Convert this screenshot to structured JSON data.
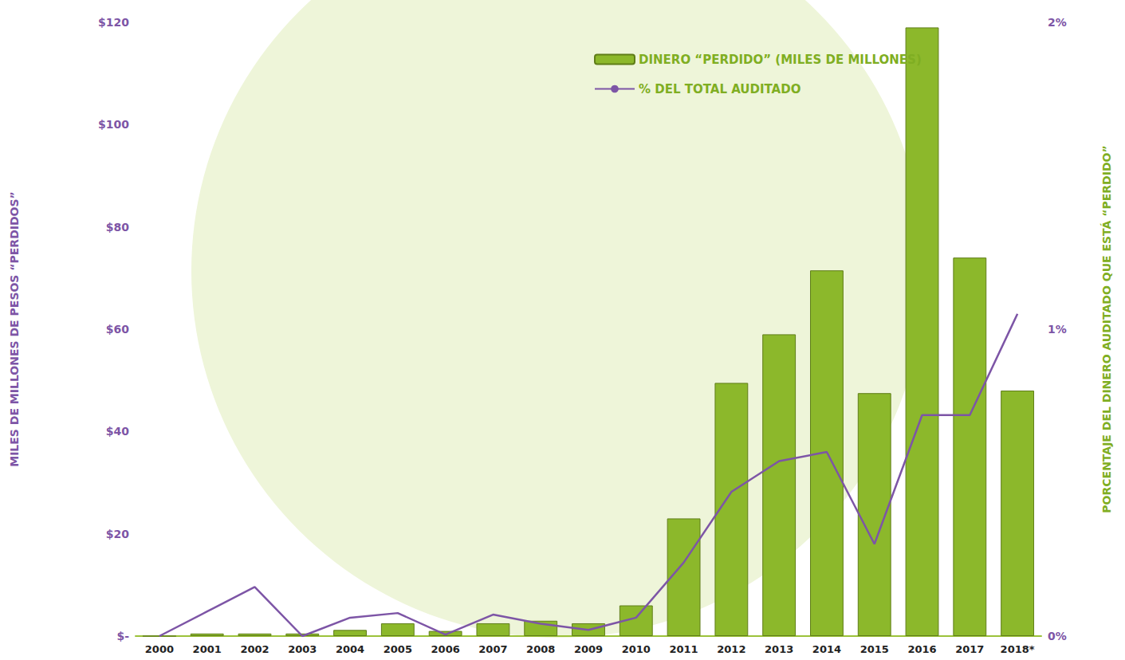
{
  "chart_data": {
    "type": "bar",
    "categories": [
      "2000",
      "2001",
      "2002",
      "2003",
      "2004",
      "2005",
      "2006",
      "2007",
      "2008",
      "2009",
      "2010",
      "2011",
      "2012",
      "2013",
      "2014",
      "2015",
      "2016",
      "2017",
      "2018*"
    ],
    "series": [
      {
        "name": "DINERO “PERDIDO” (MILES DE MILLONES)",
        "type": "bar",
        "color": "#8cb82b",
        "values": [
          0,
          0.5,
          0.5,
          0.5,
          1.2,
          2.5,
          1.0,
          2.5,
          3.0,
          2.5,
          6.0,
          23.0,
          49.5,
          59.0,
          71.5,
          47.5,
          119.0,
          74.0,
          48.0
        ]
      },
      {
        "name": "% DEL TOTAL AUDITADO",
        "type": "line",
        "color": "#7d55a6",
        "axis": "y2",
        "values": [
          0,
          0.08,
          0.16,
          0,
          0.06,
          0.075,
          0.005,
          0.07,
          0.04,
          0.02,
          0.06,
          0.24,
          0.47,
          0.57,
          0.6,
          0.3,
          0.72,
          0.72,
          1.05
        ]
      }
    ],
    "y_label": "MILES DE MILLONES DE PESOS “PERDIDOS”",
    "y2_label": "PORCENTAJE DEL DINERO AUDITADO QUE ESTÁ “PERDIDO”",
    "ylim": [
      0,
      120
    ],
    "yticks": [
      {
        "value": 0,
        "label": "$-"
      },
      {
        "value": 20,
        "label": "$20"
      },
      {
        "value": 40,
        "label": "$40"
      },
      {
        "value": 60,
        "label": "$60"
      },
      {
        "value": 80,
        "label": "$80"
      },
      {
        "value": 100,
        "label": "$100"
      },
      {
        "value": 120,
        "label": "$120"
      }
    ],
    "y2lim": [
      0,
      2
    ],
    "y2ticks": [
      {
        "value": 0,
        "label": "0%"
      },
      {
        "value": 1,
        "label": "1%"
      },
      {
        "value": 2,
        "label": "2%"
      }
    ],
    "grid": false,
    "legend": "top"
  }
}
